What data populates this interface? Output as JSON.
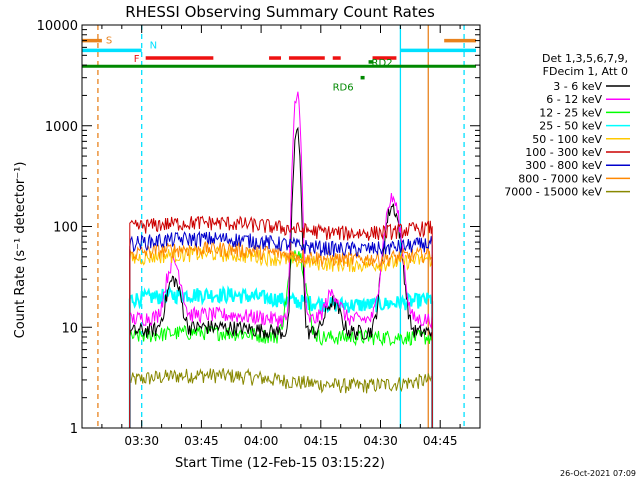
{
  "chart_data": {
    "type": "line",
    "title": "RHESSI Observing Summary Count Rates",
    "xlabel": "Start Time (12-Feb-15 03:15:22)",
    "ylabel": "Count Rate (s⁻¹ detector⁻¹)",
    "y_scale": "log",
    "ylim": [
      1,
      10000
    ],
    "xlim": [
      "03:15",
      "04:55"
    ],
    "x_ticks": [
      "03:30",
      "03:45",
      "04:00",
      "04:15",
      "04:30",
      "04:45"
    ],
    "y_ticks": [
      "1",
      "10",
      "100",
      "1000",
      "10000"
    ],
    "legend_placement": "right",
    "legend_header": [
      "Det 1,3,5,6,7,9,",
      "FDecim 1, Att 0"
    ],
    "timestamp": "26-Oct-2021 07:09",
    "flags": [
      {
        "label": "S",
        "color": "#e8821e",
        "segments": [
          [
            "03:15",
            "03:20"
          ],
          [
            "04:46",
            "04:54"
          ]
        ],
        "level": 7000
      },
      {
        "label": "N",
        "color": "#00e0ff",
        "segments": [
          [
            "03:15",
            "03:30"
          ],
          [
            "04:35",
            "04:54"
          ]
        ],
        "level": 5600
      },
      {
        "label": "F",
        "color": "#ee1111",
        "segments": [
          [
            "03:31",
            "03:48"
          ],
          [
            "04:02",
            "04:05"
          ],
          [
            "04:07",
            "04:16"
          ],
          [
            "04:18",
            "04:20"
          ],
          [
            "04:28",
            "04:34"
          ]
        ],
        "level": 4700
      },
      {
        "label": "RD6",
        "color": "#008800",
        "segments": [
          [
            "04:25",
            "04:26"
          ]
        ],
        "level": 3000
      },
      {
        "label": "RD2",
        "color": "#008800",
        "segments": [
          [
            "04:27",
            "04:28"
          ]
        ],
        "level": 4300
      },
      {
        "label": "",
        "color": "#008800",
        "segments": [
          [
            "03:15",
            "04:54"
          ]
        ],
        "level": 3900
      }
    ],
    "vertical_markers": [
      {
        "time": "03:19",
        "color": "#e8821e",
        "style": "dashed"
      },
      {
        "time": "03:30",
        "color": "#00e0ff",
        "style": "dashed"
      },
      {
        "time": "04:35",
        "color": "#00e0ff",
        "style": "solid"
      },
      {
        "time": "04:42",
        "color": "#e8821e",
        "style": "solid"
      },
      {
        "time": "04:51",
        "color": "#00e0ff",
        "style": "dashed"
      }
    ],
    "data_interval": [
      "03:27",
      "04:43"
    ],
    "series": [
      {
        "name": "3 - 6 keV",
        "color": "#000000",
        "base": 9,
        "peaks": [
          [
            "03:38",
            30
          ],
          [
            "04:09",
            900
          ],
          [
            "04:33",
            160
          ],
          [
            "04:18",
            18
          ]
        ]
      },
      {
        "name": "6 - 12 keV",
        "color": "#ff00ff",
        "base": 12,
        "peaks": [
          [
            "03:38",
            45
          ],
          [
            "04:09",
            2200
          ],
          [
            "04:33",
            190
          ],
          [
            "04:18",
            22
          ]
        ]
      },
      {
        "name": "12 - 25 keV",
        "color": "#00ff00",
        "base": 8,
        "peaks": [
          [
            "04:09",
            60
          ]
        ]
      },
      {
        "name": "25 - 50 keV",
        "color": "#00ffff",
        "base": 19,
        "peaks": []
      },
      {
        "name": "50 - 100 keV",
        "color": "#ffc800",
        "base": 48,
        "peaks": []
      },
      {
        "name": "100 - 300 keV",
        "color": "#cc0000",
        "base": 98,
        "peaks": []
      },
      {
        "name": "300 - 800 keV",
        "color": "#0000cc",
        "base": 68,
        "peaks": []
      },
      {
        "name": "800 - 7000 keV",
        "color": "#ff8800",
        "base": 54,
        "peaks": []
      },
      {
        "name": "7000 - 15000 keV",
        "color": "#888800",
        "base": 3,
        "peaks": []
      }
    ]
  }
}
